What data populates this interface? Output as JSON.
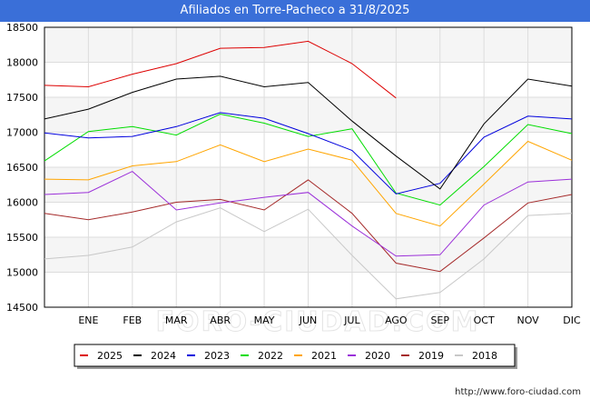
{
  "chart_data": {
    "type": "line",
    "title": "Afiliados en Torre-Pacheco a 31/8/2025",
    "xlabel": "",
    "ylabel": "",
    "categories": [
      "",
      "ENE",
      "FEB",
      "MAR",
      "ABR",
      "MAY",
      "JUN",
      "JUL",
      "AGO",
      "SEP",
      "OCT",
      "NOV",
      "DIC"
    ],
    "ylim": [
      14500,
      18500
    ],
    "yticks": [
      14500,
      15000,
      15500,
      16000,
      16500,
      17000,
      17500,
      18000,
      18500
    ],
    "watermark": "FORO-CIUDAD.COM",
    "legend_position": "bottom",
    "series": [
      {
        "name": "2025",
        "color": "#dd0000",
        "values": [
          17670,
          17650,
          17830,
          17980,
          18200,
          18210,
          18300,
          17980,
          17490,
          null,
          null,
          null,
          null
        ]
      },
      {
        "name": "2024",
        "color": "#000000",
        "values": [
          17190,
          17330,
          17570,
          17760,
          17800,
          17650,
          17710,
          17160,
          16660,
          16190,
          17120,
          17760,
          17660
        ]
      },
      {
        "name": "2023",
        "color": "#0000dd",
        "values": [
          16990,
          16920,
          16940,
          17080,
          17280,
          17200,
          16980,
          16740,
          16120,
          16270,
          16930,
          17230,
          17190
        ]
      },
      {
        "name": "2022",
        "color": "#00dd00",
        "values": [
          16590,
          17010,
          17080,
          16960,
          17260,
          17130,
          16940,
          17050,
          16130,
          15960,
          16510,
          17110,
          16980
        ]
      },
      {
        "name": "2021",
        "color": "#ffa500",
        "values": [
          16330,
          16320,
          16520,
          16580,
          16820,
          16580,
          16760,
          16600,
          15840,
          15660,
          16260,
          16870,
          16600
        ]
      },
      {
        "name": "2020",
        "color": "#9b30d9",
        "values": [
          16110,
          16140,
          16440,
          15890,
          15990,
          16070,
          16140,
          15660,
          15230,
          15250,
          15960,
          16290,
          16330
        ]
      },
      {
        "name": "2019",
        "color": "#a52a2a",
        "values": [
          15840,
          15750,
          15860,
          16000,
          16040,
          15890,
          16320,
          15840,
          15130,
          15010,
          15490,
          15990,
          16110
        ]
      },
      {
        "name": "2018",
        "color": "#c8c8c8",
        "values": [
          15190,
          15240,
          15360,
          15720,
          15920,
          15580,
          15900,
          15240,
          14620,
          14710,
          15190,
          15810,
          15840
        ]
      }
    ]
  },
  "source_url": "http://www.foro-ciudad.com"
}
